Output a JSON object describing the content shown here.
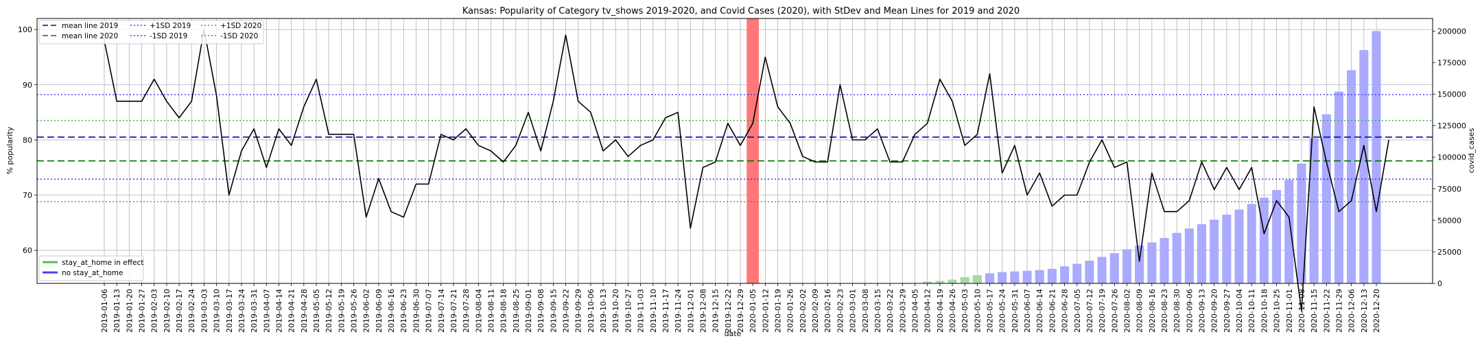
{
  "chart_data": {
    "type": "line+bar",
    "title": "Kansas: Popularity of Category tv_shows 2019-2020, and Covid Cases (2020), with StDev and Mean Lines for 2019 and 2020",
    "xlabel": "date",
    "ylabel_left": "% popularity",
    "ylabel_right": "covid_cases",
    "ylim_left": [
      54,
      102
    ],
    "ylim_right": [
      0,
      210000
    ],
    "yticks_left": [
      60,
      70,
      80,
      90,
      100
    ],
    "yticks_right": [
      0,
      25000,
      50000,
      75000,
      100000,
      125000,
      150000,
      175000,
      200000
    ],
    "grid": true,
    "dates": [
      "2019-01-06",
      "2019-01-13",
      "2019-01-20",
      "2019-01-27",
      "2019-02-03",
      "2019-02-10",
      "2019-02-17",
      "2019-02-24",
      "2019-03-03",
      "2019-03-10",
      "2019-03-17",
      "2019-03-24",
      "2019-03-31",
      "2019-04-07",
      "2019-04-14",
      "2019-04-21",
      "2019-04-28",
      "2019-05-05",
      "2019-05-12",
      "2019-05-19",
      "2019-05-26",
      "2019-06-02",
      "2019-06-09",
      "2019-06-16",
      "2019-06-23",
      "2019-06-30",
      "2019-07-07",
      "2019-07-14",
      "2019-07-21",
      "2019-07-28",
      "2019-08-04",
      "2019-08-11",
      "2019-08-18",
      "2019-08-25",
      "2019-09-01",
      "2019-09-08",
      "2019-09-15",
      "2019-09-22",
      "2019-09-29",
      "2019-10-06",
      "2019-10-13",
      "2019-10-20",
      "2019-10-27",
      "2019-11-03",
      "2019-11-10",
      "2019-11-17",
      "2019-11-24",
      "2019-12-01",
      "2019-12-08",
      "2019-12-15",
      "2019-12-22",
      "2019-12-29",
      "2020-01-05",
      "2020-01-12",
      "2020-01-19",
      "2020-01-26",
      "2020-02-02",
      "2020-02-09",
      "2020-02-16",
      "2020-02-23",
      "2020-03-01",
      "2020-03-08",
      "2020-03-15",
      "2020-03-22",
      "2020-03-29",
      "2020-04-05",
      "2020-04-12",
      "2020-04-19",
      "2020-04-26",
      "2020-05-03",
      "2020-05-10",
      "2020-05-17",
      "2020-05-24",
      "2020-05-31",
      "2020-06-07",
      "2020-06-14",
      "2020-06-21",
      "2020-06-28",
      "2020-07-05",
      "2020-07-12",
      "2020-07-19",
      "2020-07-26",
      "2020-08-02",
      "2020-08-09",
      "2020-08-16",
      "2020-08-23",
      "2020-08-30",
      "2020-09-06",
      "2020-09-13",
      "2020-09-20",
      "2020-09-27",
      "2020-10-04",
      "2020-10-11",
      "2020-10-18",
      "2020-10-25",
      "2020-11-01",
      "2020-11-08",
      "2020-11-15",
      "2020-11-22",
      "2020-11-29",
      "2020-12-06",
      "2020-12-13",
      "2020-12-20"
    ],
    "popularity": [
      98,
      87,
      87,
      87,
      91,
      87,
      84,
      87,
      100,
      88,
      70,
      78,
      82,
      75,
      82,
      79,
      86,
      91,
      81,
      81,
      81,
      66,
      73,
      67,
      66,
      72,
      72,
      81,
      80,
      82,
      79,
      78,
      76,
      79,
      85,
      78,
      87,
      99,
      87,
      85,
      78,
      80,
      77,
      79,
      80,
      84,
      85,
      64,
      75,
      76,
      83,
      79,
      83,
      95,
      86,
      83,
      77,
      76,
      76,
      90,
      80,
      80,
      82,
      76,
      76,
      81,
      83,
      91,
      87,
      79,
      81,
      92,
      74,
      79,
      70,
      74,
      68,
      70,
      70,
      76,
      80,
      75,
      76,
      58,
      74,
      67,
      67,
      69,
      76,
      71,
      75,
      71,
      75,
      63,
      69,
      66,
      49,
      86,
      76,
      67,
      69,
      79,
      67,
      80
    ],
    "mean_2019": 80.5,
    "plus_1sd_2019": 88.2,
    "minus_1sd_2019": 72.9,
    "mean_2020": 76.2,
    "plus_1sd_2020": 83.5,
    "minus_1sd_2020": 68.8,
    "covid_cases": [
      0,
      0,
      0,
      0,
      0,
      0,
      0,
      0,
      0,
      0,
      0,
      0,
      0,
      0,
      0,
      0,
      0,
      0,
      0,
      0,
      0,
      0,
      0,
      0,
      0,
      0,
      0,
      0,
      0,
      0,
      0,
      0,
      0,
      0,
      0,
      0,
      0,
      0,
      0,
      0,
      0,
      0,
      0,
      0,
      0,
      0,
      0,
      0,
      0,
      0,
      0,
      0,
      0,
      0,
      0,
      0,
      0,
      0,
      0,
      0,
      0,
      0,
      0,
      0,
      0,
      0,
      0,
      0,
      0,
      0,
      0,
      0,
      0,
      0,
      0,
      0,
      0,
      0,
      0,
      0,
      0,
      0,
      0,
      0,
      0,
      0,
      0,
      0,
      0,
      0,
      0,
      0,
      0,
      0,
      0,
      0,
      0,
      0,
      0,
      0,
      0,
      0,
      0,
      0,
      0
    ],
    "covid_bars": [
      {
        "date": "2020-04-12",
        "value": 1500,
        "stay_at_home": true
      },
      {
        "date": "2020-04-19",
        "value": 2000,
        "stay_at_home": true
      },
      {
        "date": "2020-04-26",
        "value": 3000,
        "stay_at_home": true
      },
      {
        "date": "2020-05-03",
        "value": 5000,
        "stay_at_home": true
      },
      {
        "date": "2020-05-10",
        "value": 6500,
        "stay_at_home": true
      },
      {
        "date": "2020-05-17",
        "value": 8000,
        "stay_at_home": false
      },
      {
        "date": "2020-05-24",
        "value": 9000,
        "stay_at_home": false
      },
      {
        "date": "2020-05-31",
        "value": 9500,
        "stay_at_home": false
      },
      {
        "date": "2020-06-07",
        "value": 10000,
        "stay_at_home": false
      },
      {
        "date": "2020-06-14",
        "value": 10500,
        "stay_at_home": false
      },
      {
        "date": "2020-06-21",
        "value": 11500,
        "stay_at_home": false
      },
      {
        "date": "2020-06-28",
        "value": 13500,
        "stay_at_home": false
      },
      {
        "date": "2020-07-05",
        "value": 15500,
        "stay_at_home": false
      },
      {
        "date": "2020-07-12",
        "value": 18000,
        "stay_at_home": false
      },
      {
        "date": "2020-07-19",
        "value": 21000,
        "stay_at_home": false
      },
      {
        "date": "2020-07-26",
        "value": 24000,
        "stay_at_home": false
      },
      {
        "date": "2020-08-02",
        "value": 27000,
        "stay_at_home": false
      },
      {
        "date": "2020-08-09",
        "value": 30000,
        "stay_at_home": false
      },
      {
        "date": "2020-08-16",
        "value": 32500,
        "stay_at_home": false
      },
      {
        "date": "2020-08-23",
        "value": 36000,
        "stay_at_home": false
      },
      {
        "date": "2020-08-30",
        "value": 40000,
        "stay_at_home": false
      },
      {
        "date": "2020-09-06",
        "value": 43500,
        "stay_at_home": false
      },
      {
        "date": "2020-09-13",
        "value": 47000,
        "stay_at_home": false
      },
      {
        "date": "2020-09-20",
        "value": 50500,
        "stay_at_home": false
      },
      {
        "date": "2020-09-27",
        "value": 54500,
        "stay_at_home": false
      },
      {
        "date": "2020-10-04",
        "value": 58500,
        "stay_at_home": false
      },
      {
        "date": "2020-10-11",
        "value": 63000,
        "stay_at_home": false
      },
      {
        "date": "2020-10-18",
        "value": 68000,
        "stay_at_home": false
      },
      {
        "date": "2020-10-25",
        "value": 74000,
        "stay_at_home": false
      },
      {
        "date": "2020-11-01",
        "value": 82000,
        "stay_at_home": false
      },
      {
        "date": "2020-11-08",
        "value": 95000,
        "stay_at_home": false
      },
      {
        "date": "2020-11-15",
        "value": 115000,
        "stay_at_home": false
      },
      {
        "date": "2020-11-22",
        "value": 134000,
        "stay_at_home": false
      },
      {
        "date": "2020-11-29",
        "value": 152000,
        "stay_at_home": false
      },
      {
        "date": "2020-12-06",
        "value": 169000,
        "stay_at_home": false
      },
      {
        "date": "2020-12-13",
        "value": 185000,
        "stay_at_home": false
      },
      {
        "date": "2020-12-20",
        "value": 200000,
        "stay_at_home": false
      }
    ],
    "highlight_date": "2020-01-05",
    "legend_top": [
      "mean line 2019",
      "mean line 2020",
      "+1SD 2019",
      "-1SD 2019",
      "+1SD 2020",
      "-1SD 2020"
    ],
    "legend_bottom": [
      "stay_at_home in effect",
      "no stay_at_home"
    ],
    "legend_placement_top": "upper-left",
    "legend_placement_bottom": "lower-left",
    "colors": {
      "popularity": "#000000",
      "mean_2019": "#0000bb",
      "mean_2020": "#007700",
      "sd_2019": "#3333ff",
      "sd_2020": "#33aa33",
      "bar_no_sah": "#aaaaff",
      "bar_sah": "#a8d8a8",
      "highlight": "#ff7777"
    }
  }
}
